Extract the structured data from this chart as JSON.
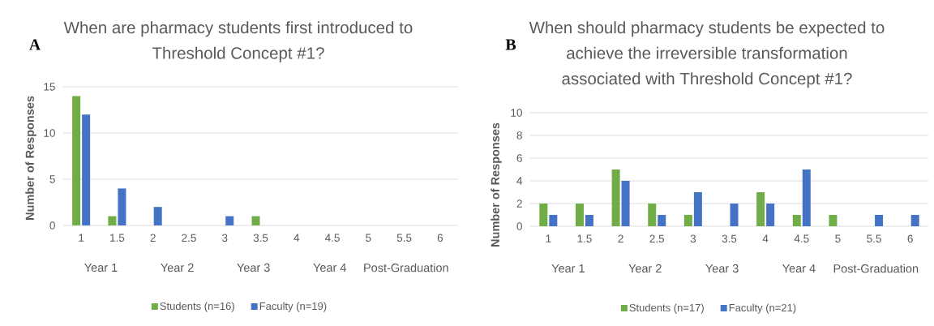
{
  "chart_data": [
    {
      "type": "bar",
      "title": "When are pharmacy students first introduced to Threshold Concept #1?",
      "ylabel": "Number of Responses",
      "categories": [
        "1",
        "1.5",
        "2",
        "2.5",
        "3",
        "3.5",
        "4",
        "4.5",
        "5",
        "5.5",
        "6"
      ],
      "series": [
        {
          "name": "Students (n=16)",
          "color": "#70ad47",
          "values": [
            14,
            1,
            0,
            0,
            0,
            1,
            0,
            0,
            0,
            0,
            0
          ]
        },
        {
          "name": "Faculty (n=19)",
          "color": "#4472c4",
          "values": [
            12,
            4,
            2,
            0,
            1,
            0,
            0,
            0,
            0,
            0,
            0
          ]
        }
      ],
      "ylim": [
        0,
        15
      ],
      "yticks": [
        0,
        5,
        10,
        15
      ],
      "grid": "y",
      "legend": "bottom",
      "annotations": [
        "A",
        "Year 1",
        "Year 2",
        "Year 3",
        "Year 4",
        "Post-Graduation"
      ]
    },
    {
      "type": "bar",
      "title": "When should pharmacy students be expected to achieve the irreversible transformation associated with Threshold Concept #1?",
      "ylabel": "Number of Responses",
      "categories": [
        "1",
        "1.5",
        "2",
        "2.5",
        "3",
        "3.5",
        "4",
        "4.5",
        "5",
        "5.5",
        "6"
      ],
      "series": [
        {
          "name": "Students (n=17)",
          "color": "#70ad47",
          "values": [
            2,
            2,
            5,
            2,
            1,
            0,
            3,
            1,
            1,
            0,
            0
          ]
        },
        {
          "name": "Faculty (n=21)",
          "color": "#4472c4",
          "values": [
            1,
            1,
            4,
            1,
            3,
            2,
            2,
            5,
            0,
            1,
            1
          ]
        }
      ],
      "ylim": [
        0,
        10
      ],
      "yticks": [
        0,
        2,
        4,
        6,
        8,
        10
      ],
      "grid": "y",
      "legend": "bottom",
      "annotations": [
        "B",
        "Year 1",
        "Year 2",
        "Year 3",
        "Year 4",
        "Post-Graduation"
      ]
    }
  ]
}
